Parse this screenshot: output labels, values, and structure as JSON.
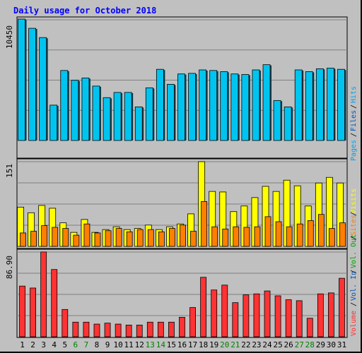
{
  "chart_data": {
    "type": "bar",
    "title": "Daily usage for October 2018",
    "categories": [
      "1",
      "2",
      "3",
      "4",
      "5",
      "6",
      "7",
      "8",
      "9",
      "10",
      "11",
      "12",
      "13",
      "14",
      "15",
      "16",
      "17",
      "18",
      "19",
      "20",
      "21",
      "22",
      "23",
      "24",
      "25",
      "26",
      "27",
      "28",
      "29",
      "30",
      "31"
    ],
    "weekend_days": [
      "6",
      "7",
      "13",
      "14",
      "20",
      "21",
      "27",
      "28"
    ],
    "colors": {
      "hits": "#00c4f0",
      "files": "#0054c0",
      "pages": "#00a2f0",
      "sites": "#ff7f00",
      "visits": "#ffff00",
      "kbytes_in": "#ff3333",
      "kbytes_out": "#00a000",
      "weekday_label": "#000000",
      "weekend_label": "#008000",
      "background": "#c0c0c0",
      "title": "#0000ff"
    },
    "panels": [
      {
        "name": "hits",
        "max_label": "10450",
        "ylim": [
          0,
          10450
        ],
        "series": [
          {
            "name": "Hits",
            "values": [
              10450,
              9650,
              8850,
              3000,
              6000,
              5150,
              5350,
              4650,
              3650,
              4100,
              4100,
              2850,
              4500,
              6100,
              4800,
              5700,
              5750,
              6050,
              6000,
              5900,
              5700,
              5650,
              6050,
              6500,
              3400,
              2850,
              6050,
              5900,
              6150,
              6200,
              6100
            ]
          }
        ]
      },
      {
        "name": "visits",
        "max_label": "151",
        "ylim": [
          0,
          151
        ],
        "series": [
          {
            "name": "Visits",
            "values": [
              70,
              60,
              73,
              68,
              42,
              25,
              48,
              25,
              30,
              35,
              30,
              32,
              38,
              30,
              35,
              40,
              58,
              151,
              98,
              97,
              62,
              72,
              87,
              107,
              98,
              118,
              108,
              72,
              113,
              123,
              113
            ]
          },
          {
            "name": "Sites",
            "values": [
              24,
              27,
              37,
              34,
              32,
              20,
              40,
              24,
              28,
              32,
              26,
              30,
              30,
              26,
              32,
              38,
              27,
              80,
              35,
              31,
              35,
              34,
              35,
              53,
              44,
              35,
              40,
              46,
              57,
              32,
              42
            ]
          }
        ]
      },
      {
        "name": "kbytes",
        "max_label": "86.90",
        "ylim": [
          0,
          86.9
        ],
        "series": [
          {
            "name": "Volume",
            "values": [
              52,
              50,
              87,
              69,
              28,
              15,
              15,
              13,
              14,
              13,
              12,
              12,
              15,
              15,
              15,
              20,
              30,
              61,
              48,
              53,
              35,
              43,
              44,
              47,
              42,
              38,
              37,
              19,
              44,
              45,
              60
            ]
          }
        ]
      }
    ],
    "legend": [
      {
        "label": "Hits",
        "color": "#00a2f0"
      },
      {
        "label": "Files",
        "color": "#0054c0"
      },
      {
        "label": "Pages",
        "color": "#00a2f0"
      },
      {
        "label": "Visits",
        "color": "#ffff00"
      },
      {
        "label": "Sites",
        "color": "#ff7f00"
      },
      {
        "label": "Vol. Out",
        "color": "#00a000"
      },
      {
        "label": "Vol. In",
        "color": "#0054c0"
      },
      {
        "label": "Volume",
        "color": "#ff3333"
      }
    ]
  }
}
